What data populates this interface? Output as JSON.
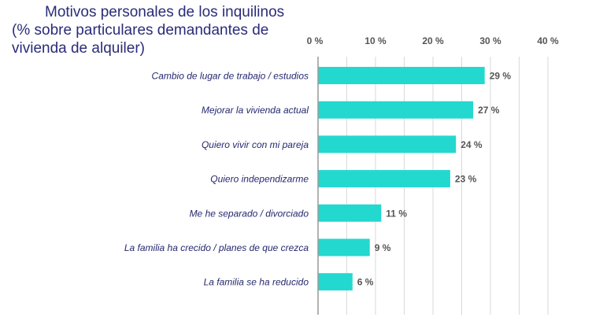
{
  "chart_data": {
    "type": "bar",
    "orientation": "horizontal",
    "title": [
      "Motivos personales de los inquilinos",
      "(% sobre particulares demandantes de",
      "vivienda de alquiler)"
    ],
    "categories": [
      "Cambio de lugar de trabajo / estudios",
      "Mejorar la vivienda actual",
      "Quiero vivir con mi pareja",
      "Quiero independizarme",
      "Me he separado / divorciado",
      "La familia ha crecido / planes de que crezca",
      "La familia se ha reducido"
    ],
    "values": [
      29,
      27,
      24,
      23,
      11,
      9,
      6
    ],
    "data_labels": [
      "29 %",
      "27 %",
      "24 %",
      "23 %",
      "11 %",
      "9 %",
      "6 %"
    ],
    "xlim": [
      0,
      40
    ],
    "x_ticks": [
      0,
      10,
      20,
      30,
      40
    ],
    "x_tick_labels": [
      "0 %",
      "10 %",
      "20 %",
      "30 %",
      "40 %"
    ],
    "axis_position": "top",
    "grid": true,
    "colors": {
      "bar": "#23d8cf",
      "title": "#2a2c78",
      "category": "#25286e",
      "value_label": "#555555",
      "grid": "#d9d9d9"
    }
  }
}
